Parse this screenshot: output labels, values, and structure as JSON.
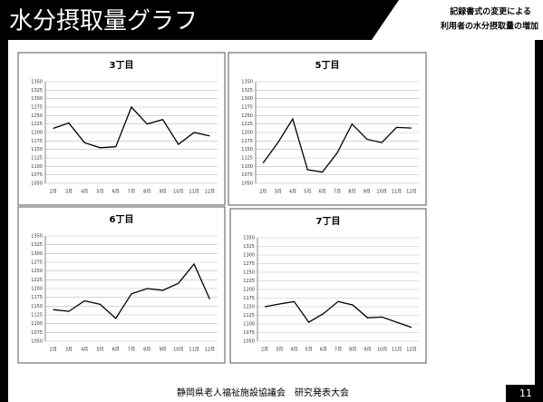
{
  "header": {
    "title": "水分摂取量グラフ",
    "subtitle_lines": [
      "記録書式の変更による",
      "利用者の水分摂取量の増加"
    ]
  },
  "footer": {
    "text": "静岡県老人福祉施設協議会　研究発表大会",
    "page_number": "11"
  },
  "chart_data": [
    {
      "type": "line",
      "title": "3丁目",
      "categories": [
        "2月",
        "3月",
        "4月",
        "5月",
        "6月",
        "7月",
        "8月",
        "9月",
        "10月",
        "11月",
        "12月"
      ],
      "series": [
        {
          "name": null,
          "color": "#000000",
          "values": [
            1212,
            1228,
            1170,
            1155,
            1158,
            1275,
            1225,
            1238,
            1165,
            1200,
            1190
          ]
        }
      ],
      "ylim": [
        1050,
        1350
      ],
      "yticks": [
        1050,
        1075,
        1100,
        1125,
        1150,
        1175,
        1200,
        1225,
        1250,
        1275,
        1300,
        1325,
        1350
      ],
      "grid": true
    },
    {
      "type": "line",
      "title": "5丁目",
      "categories": [
        "2月",
        "3月",
        "4月",
        "5月",
        "6月",
        "7月",
        "8月",
        "9月",
        "10月",
        "11月",
        "12月"
      ],
      "series": [
        {
          "name": null,
          "color": "#000000",
          "values": [
            1110,
            1170,
            1240,
            1090,
            1083,
            1140,
            1225,
            1180,
            1170,
            1215,
            1213
          ]
        }
      ],
      "ylim": [
        1050,
        1350
      ],
      "yticks": [
        1050,
        1075,
        1100,
        1125,
        1150,
        1175,
        1200,
        1225,
        1250,
        1275,
        1300,
        1325,
        1350
      ],
      "grid": true
    },
    {
      "type": "line",
      "title": "6丁目",
      "categories": [
        "2月",
        "3月",
        "4月",
        "5月",
        "6月",
        "7月",
        "8月",
        "9月",
        "10月",
        "11月",
        "12月"
      ],
      "series": [
        {
          "name": null,
          "color": "#000000",
          "values": [
            1140,
            1135,
            1165,
            1155,
            1115,
            1185,
            1200,
            1195,
            1215,
            1270,
            1170
          ]
        }
      ],
      "ylim": [
        1050,
        1350
      ],
      "yticks": [
        1050,
        1075,
        1100,
        1125,
        1150,
        1175,
        1200,
        1225,
        1250,
        1275,
        1300,
        1325,
        1350
      ],
      "grid": true
    },
    {
      "type": "line",
      "title": "7丁目",
      "categories": [
        "2月",
        "3月",
        "4月",
        "5月",
        "6月",
        "7月",
        "8月",
        "9月",
        "10月",
        "11月",
        "12月"
      ],
      "series": [
        {
          "name": null,
          "color": "#000000",
          "values": [
            1150,
            1158,
            1165,
            1105,
            1130,
            1165,
            1155,
            1118,
            1120,
            1105,
            1090
          ]
        }
      ],
      "ylim": [
        1050,
        1350
      ],
      "yticks": [
        1050,
        1075,
        1100,
        1125,
        1150,
        1175,
        1200,
        1225,
        1250,
        1275,
        1300,
        1325,
        1350
      ],
      "grid": true
    }
  ]
}
